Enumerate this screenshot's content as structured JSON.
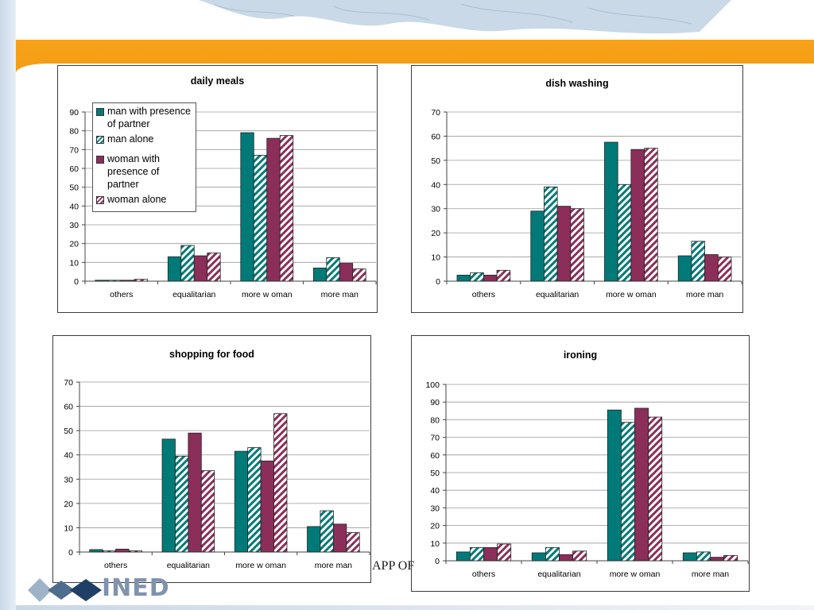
{
  "colors": {
    "accent_orange": "#f39c12",
    "man_partner": "#007a78",
    "man_alone_stripe": "#007a78",
    "woman_partner": "#8b2e5a",
    "woman_alone_stripe": "#8b2e5a"
  },
  "legend": {
    "items": [
      {
        "label": "man with presence of partner",
        "style": "solid",
        "color": "#007a78"
      },
      {
        "label": "man alone",
        "style": "striped",
        "color": "#007a78"
      },
      {
        "label": "woman with presence of partner",
        "style": "solid",
        "color": "#8b2e5a"
      },
      {
        "label": "woman alone",
        "style": "striped",
        "color": "#8b2e5a"
      }
    ]
  },
  "footer": {
    "partial_text": "APP OF",
    "logo_text": "INED"
  },
  "chart_data": [
    {
      "type": "bar",
      "title": "daily meals",
      "categories": [
        "others",
        "equalitarian",
        "more w oman",
        "more man"
      ],
      "ylim": [
        0,
        90
      ],
      "yticks": [
        0,
        10,
        20,
        30,
        40,
        50,
        60,
        70,
        80,
        90
      ],
      "grid": true,
      "legend": "top-left",
      "series": [
        {
          "name": "man with presence of partner",
          "values": [
            0.5,
            13,
            79,
            7
          ]
        },
        {
          "name": "man alone",
          "values": [
            0.5,
            19,
            67,
            12.5
          ]
        },
        {
          "name": "woman with presence of partner",
          "values": [
            0.5,
            13.5,
            76,
            9.5
          ]
        },
        {
          "name": "woman alone",
          "values": [
            1,
            15,
            77.5,
            6.5
          ]
        }
      ]
    },
    {
      "type": "bar",
      "title": "dish washing",
      "categories": [
        "others",
        "equalitarian",
        "more w oman",
        "more man"
      ],
      "ylim": [
        0,
        70
      ],
      "yticks": [
        0,
        10,
        20,
        30,
        40,
        50,
        60,
        70
      ],
      "grid": true,
      "series": [
        {
          "name": "man with presence of partner",
          "values": [
            2.5,
            29,
            57.5,
            10.5
          ]
        },
        {
          "name": "man alone",
          "values": [
            3.5,
            39,
            40,
            16.5
          ]
        },
        {
          "name": "woman with presence of partner",
          "values": [
            2.5,
            31,
            54.5,
            11
          ]
        },
        {
          "name": "woman alone",
          "values": [
            4.5,
            30,
            55,
            10
          ]
        }
      ]
    },
    {
      "type": "bar",
      "title": "shopping for food",
      "categories": [
        "others",
        "equalitarian",
        "more w oman",
        "more man"
      ],
      "ylim": [
        0,
        70
      ],
      "yticks": [
        0,
        10,
        20,
        30,
        40,
        50,
        60,
        70
      ],
      "grid": true,
      "series": [
        {
          "name": "man with presence of partner",
          "values": [
            1,
            46.5,
            41.5,
            10.5
          ]
        },
        {
          "name": "man alone",
          "values": [
            0.5,
            39.5,
            43,
            17
          ]
        },
        {
          "name": "woman with presence of partner",
          "values": [
            1.2,
            49,
            37.5,
            11.5
          ]
        },
        {
          "name": "woman alone",
          "values": [
            0.5,
            33.5,
            57,
            8
          ]
        }
      ]
    },
    {
      "type": "bar",
      "title": "ironing",
      "categories": [
        "others",
        "equalitarian",
        "more w oman",
        "more man"
      ],
      "ylim": [
        0,
        100
      ],
      "yticks": [
        0,
        10,
        20,
        30,
        40,
        50,
        60,
        70,
        80,
        90,
        100
      ],
      "grid": true,
      "series": [
        {
          "name": "man with presence of partner",
          "values": [
            5,
            4.5,
            85.5,
            4.5
          ]
        },
        {
          "name": "man alone",
          "values": [
            7.5,
            7.5,
            78.5,
            5
          ]
        },
        {
          "name": "woman with presence of partner",
          "values": [
            7.5,
            3.5,
            86.5,
            2
          ]
        },
        {
          "name": "woman alone",
          "values": [
            9.5,
            5.5,
            81.5,
            3
          ]
        }
      ]
    }
  ]
}
